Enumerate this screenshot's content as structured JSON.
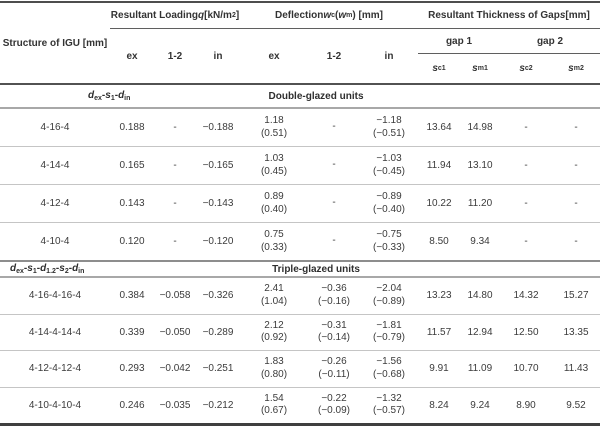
{
  "header": {
    "structure_label": "Structure of IGU [mm]",
    "loading_rich": [
      {
        "t": "Resultant Loading "
      },
      {
        "t": "q",
        "s": "i"
      },
      {
        "t": " [kN/m"
      },
      {
        "t": "2",
        "s": "sup"
      },
      {
        "t": "]"
      }
    ],
    "deflection_rich": [
      {
        "t": "Deflection "
      },
      {
        "t": "w",
        "s": "i"
      },
      {
        "t": "c",
        "s": "sub"
      },
      {
        "t": " ("
      },
      {
        "t": "w",
        "s": "i"
      },
      {
        "t": "m",
        "s": "sub"
      },
      {
        "t": ") [mm]"
      }
    ],
    "thickness_rich": [
      {
        "t": "Resultant Thickness of Gap "
      },
      {
        "t": "s",
        "s": "i"
      },
      {
        "t": " [mm]"
      }
    ],
    "loading_subcols": [
      "ex",
      "1-2",
      "in"
    ],
    "deflection_subcols": [
      "ex",
      "1-2",
      "in"
    ],
    "gap_labels": [
      "gap 1",
      "gap 2"
    ],
    "s_subcols": [
      [
        {
          "t": "s",
          "s": "i"
        },
        {
          "t": "c1",
          "s": "sub"
        }
      ],
      [
        {
          "t": "s",
          "s": "i"
        },
        {
          "t": "m1",
          "s": "sub"
        }
      ],
      [
        {
          "t": "s",
          "s": "i"
        },
        {
          "t": "c2",
          "s": "sub"
        }
      ],
      [
        {
          "t": "s",
          "s": "i"
        },
        {
          "t": "m2",
          "s": "sub"
        }
      ]
    ]
  },
  "sections": [
    {
      "structure_rich": [
        {
          "t": "d",
          "s": "i"
        },
        {
          "t": "ex",
          "s": "sub"
        },
        {
          "t": "-"
        },
        {
          "t": "s",
          "s": "i"
        },
        {
          "t": "1",
          "s": "sub"
        },
        {
          "t": "-"
        },
        {
          "t": "d",
          "s": "i"
        },
        {
          "t": "in",
          "s": "sub"
        }
      ],
      "units_label": "Double-glazed units",
      "rows": [
        {
          "structure": "4-16-4",
          "q": [
            "0.188",
            "-",
            "−0.188"
          ],
          "w": [
            {
              "v": "1.18",
              "p": "(0.51)"
            },
            {
              "v": "-"
            },
            {
              "v": "−1.18",
              "p": "(−0.51)"
            }
          ],
          "s": [
            "13.64",
            "14.98",
            "-",
            "-"
          ]
        },
        {
          "structure": "4-14-4",
          "q": [
            "0.165",
            "-",
            "−0.165"
          ],
          "w": [
            {
              "v": "1.03",
              "p": "(0.45)"
            },
            {
              "v": "-"
            },
            {
              "v": "−1.03",
              "p": "(−0.45)"
            }
          ],
          "s": [
            "11.94",
            "13.10",
            "-",
            "-"
          ]
        },
        {
          "structure": "4-12-4",
          "q": [
            "0.143",
            "-",
            "−0.143"
          ],
          "w": [
            {
              "v": "0.89",
              "p": "(0.40)"
            },
            {
              "v": "-"
            },
            {
              "v": "−0.89",
              "p": "(−0.40)"
            }
          ],
          "s": [
            "10.22",
            "11.20",
            "-",
            "-"
          ]
        },
        {
          "structure": "4-10-4",
          "q": [
            "0.120",
            "-",
            "−0.120"
          ],
          "w": [
            {
              "v": "0.75",
              "p": "(0.33)"
            },
            {
              "v": "-"
            },
            {
              "v": "−0.75",
              "p": "(−0.33)"
            }
          ],
          "s": [
            "8.50",
            "9.34",
            "-",
            "-"
          ]
        }
      ]
    },
    {
      "structure_rich": [
        {
          "t": "d",
          "s": "i"
        },
        {
          "t": "ex",
          "s": "sub"
        },
        {
          "t": "-"
        },
        {
          "t": "s",
          "s": "i"
        },
        {
          "t": "1",
          "s": "sub"
        },
        {
          "t": "-"
        },
        {
          "t": "d",
          "s": "i"
        },
        {
          "t": "1.2",
          "s": "sub"
        },
        {
          "t": "-"
        },
        {
          "t": "s",
          "s": "i"
        },
        {
          "t": "2",
          "s": "sub"
        },
        {
          "t": "-"
        },
        {
          "t": "d",
          "s": "i"
        },
        {
          "t": "in",
          "s": "sub"
        }
      ],
      "units_label": "Triple-glazed units",
      "rows": [
        {
          "structure": "4-16-4-16-4",
          "q": [
            "0.384",
            "−0.058",
            "−0.326"
          ],
          "w": [
            {
              "v": "2.41",
              "p": "(1.04)"
            },
            {
              "v": "−0.36",
              "p": "(−0.16)"
            },
            {
              "v": "−2.04",
              "p": "(−0.89)"
            }
          ],
          "s": [
            "13.23",
            "14.80",
            "14.32",
            "15.27"
          ]
        },
        {
          "structure": "4-14-4-14-4",
          "q": [
            "0.339",
            "−0.050",
            "−0.289"
          ],
          "w": [
            {
              "v": "2.12",
              "p": "(0.92)"
            },
            {
              "v": "−0.31",
              "p": "(−0.14)"
            },
            {
              "v": "−1.81",
              "p": "(−0.79)"
            }
          ],
          "s": [
            "11.57",
            "12.94",
            "12.50",
            "13.35"
          ]
        },
        {
          "structure": "4-12-4-12-4",
          "q": [
            "0.293",
            "−0.042",
            "−0.251"
          ],
          "w": [
            {
              "v": "1.83",
              "p": "(0.80)"
            },
            {
              "v": "−0.26",
              "p": "(−0.11)"
            },
            {
              "v": "−1.56",
              "p": "(−0.68)"
            }
          ],
          "s": [
            "9.91",
            "11.09",
            "10.70",
            "11.43"
          ]
        },
        {
          "structure": "4-10-4-10-4",
          "q": [
            "0.246",
            "−0.035",
            "−0.212"
          ],
          "w": [
            {
              "v": "1.54",
              "p": "(0.67)"
            },
            {
              "v": "−0.22",
              "p": "(−0.09)"
            },
            {
              "v": "−1.32",
              "p": "(−0.57)"
            }
          ],
          "s": [
            "8.24",
            "9.24",
            "8.90",
            "9.52"
          ]
        }
      ]
    }
  ]
}
